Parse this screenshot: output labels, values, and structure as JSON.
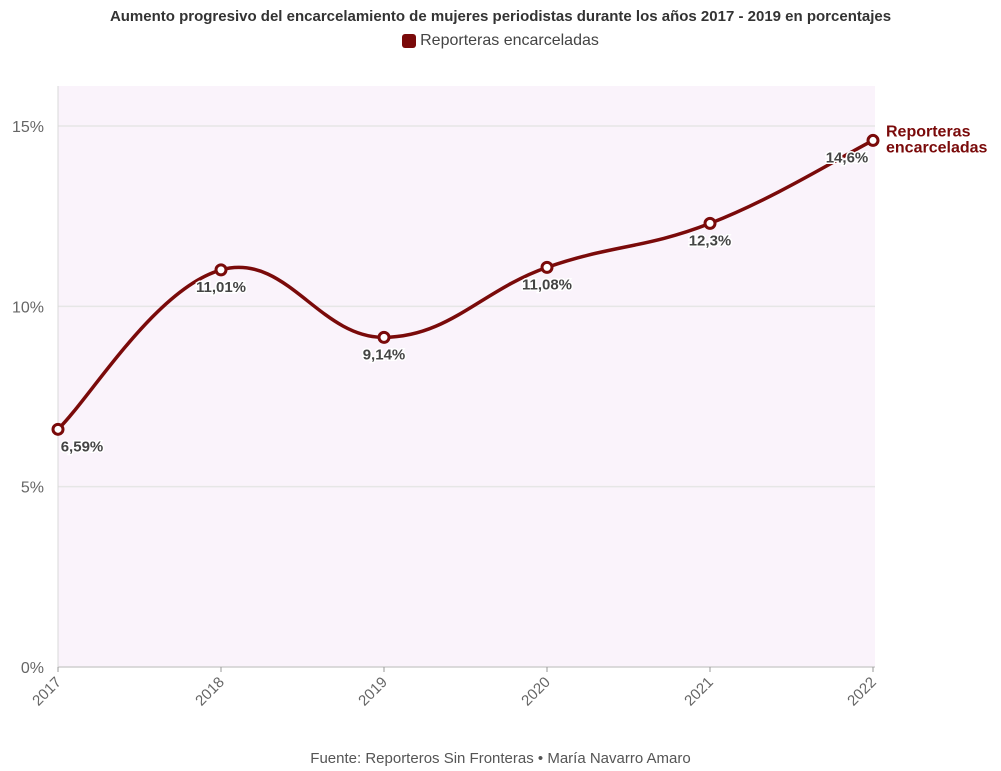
{
  "chart_data": {
    "type": "line",
    "title": "Aumento progresivo del encarcelamiento de mujeres periodistas durante los años 2017 - 2019 en porcentajes",
    "categories": [
      "2017",
      "2018",
      "2019",
      "2020",
      "2021",
      "2022"
    ],
    "series": [
      {
        "name": "Reporteras encarceladas",
        "color": "#7a0a0a",
        "values": [
          6.59,
          11.01,
          9.14,
          11.08,
          12.3,
          14.6
        ],
        "data_labels": [
          "6,59%",
          "11,01%",
          "9,14%",
          "11,08%",
          "12,3%",
          "14,6%"
        ]
      }
    ],
    "end_label": [
      "Reporteras",
      "encarceladas"
    ],
    "ylim": [
      0,
      15
    ],
    "yticks": [
      0,
      5,
      10,
      15
    ],
    "ytick_labels": [
      "0%",
      "5%",
      "10%",
      "15%"
    ],
    "xlabel": "",
    "ylabel": "",
    "grid": true,
    "legend_position": "top-center",
    "plot_background": "#faf3fb",
    "source": "Fuente: Reporteros Sin Fronteras • María Navarro Amaro"
  }
}
